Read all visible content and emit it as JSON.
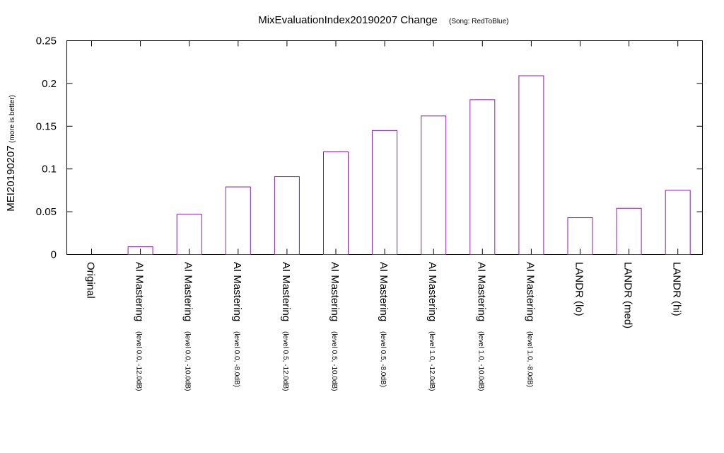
{
  "chart_data": {
    "type": "bar",
    "title": "MixEvaluationIndex20190207 Change",
    "subtitle": "(Song: RedToBlue)",
    "ylabel": "MEI20190207",
    "ylabel_note": "(more is better)",
    "xlabel": "",
    "ylim": [
      0,
      0.25
    ],
    "yticks": [
      "0",
      "0.05",
      "0.1",
      "0.15",
      "0.2",
      "0.25"
    ],
    "grid": false,
    "bar_color": "#8b1ab0",
    "categories": [
      {
        "label": "Original",
        "sub": ""
      },
      {
        "label": "AI Mastering",
        "sub": "(level 0.0, -12.0dB)"
      },
      {
        "label": "AI Mastering",
        "sub": "(level 0.0, -10.0dB)"
      },
      {
        "label": "AI Mastering",
        "sub": "(level 0.0, -8.0dB)"
      },
      {
        "label": "AI Mastering",
        "sub": "(level 0.5, -12.0dB)"
      },
      {
        "label": "AI Mastering",
        "sub": "(level 0.5, -10.0dB)"
      },
      {
        "label": "AI Mastering",
        "sub": "(level 0.5, -8.0dB)"
      },
      {
        "label": "AI Mastering",
        "sub": "(level 1.0, -12.0dB)"
      },
      {
        "label": "AI Mastering",
        "sub": "(level 1.0, -10.0dB)"
      },
      {
        "label": "AI Mastering",
        "sub": "(level 1.0, -8.0dB)"
      },
      {
        "label": "LANDR (lo)",
        "sub": ""
      },
      {
        "label": "LANDR (med)",
        "sub": ""
      },
      {
        "label": "LANDR (hi)",
        "sub": ""
      }
    ],
    "values": [
      0,
      0.009,
      0.047,
      0.079,
      0.091,
      0.12,
      0.145,
      0.162,
      0.181,
      0.209,
      0.043,
      0.054,
      0.075
    ]
  }
}
